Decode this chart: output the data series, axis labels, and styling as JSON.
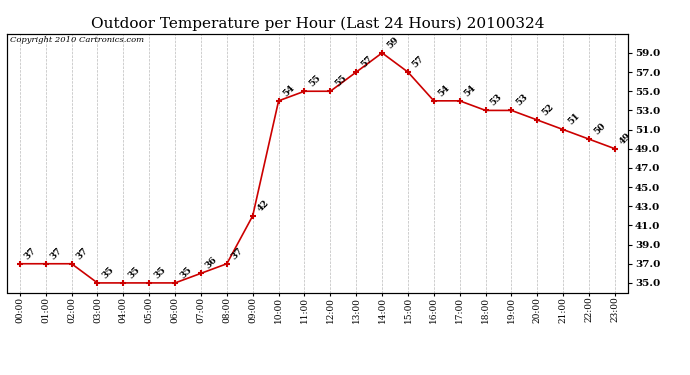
{
  "title": "Outdoor Temperature per Hour (Last 24 Hours) 20100324",
  "copyright": "Copyright 2010 Cartronics.com",
  "hours": [
    "00:00",
    "01:00",
    "02:00",
    "03:00",
    "04:00",
    "05:00",
    "06:00",
    "07:00",
    "08:00",
    "09:00",
    "10:00",
    "11:00",
    "12:00",
    "13:00",
    "14:00",
    "15:00",
    "16:00",
    "17:00",
    "18:00",
    "19:00",
    "20:00",
    "21:00",
    "22:00",
    "23:00"
  ],
  "temps": [
    37,
    37,
    37,
    35,
    35,
    35,
    35,
    36,
    37,
    42,
    54,
    55,
    55,
    57,
    59,
    57,
    54,
    54,
    53,
    53,
    52,
    51,
    50,
    49
  ],
  "ylim": [
    34.0,
    61.0
  ],
  "yticks": [
    35.0,
    37.0,
    39.0,
    41.0,
    43.0,
    45.0,
    47.0,
    49.0,
    51.0,
    53.0,
    55.0,
    57.0,
    59.0
  ],
  "line_color": "#cc0000",
  "marker_color": "#cc0000",
  "grid_color": "#bbbbbb",
  "bg_color": "#ffffff",
  "title_fontsize": 11,
  "label_fontsize": 6.5,
  "annotation_fontsize": 6.5
}
